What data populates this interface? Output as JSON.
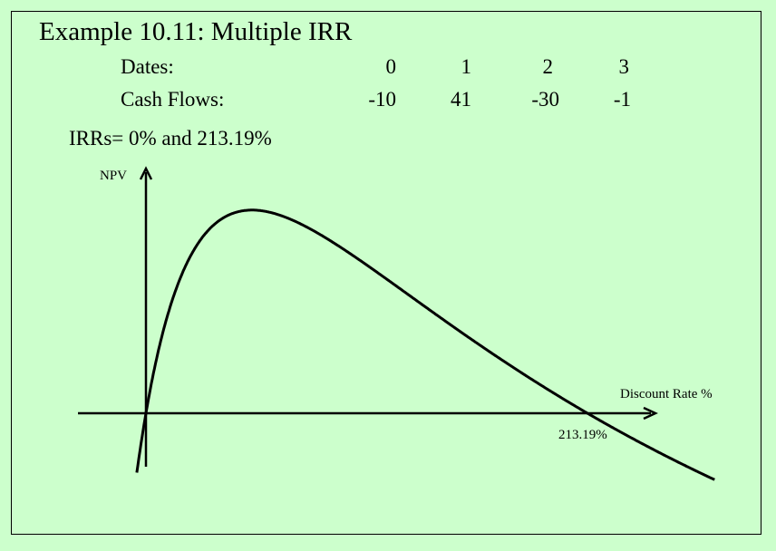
{
  "title": "Example 10.11: Multiple IRR",
  "table": {
    "dates_label": "Dates:",
    "cash_flows_label": "Cash Flows:",
    "dates": [
      "0",
      "1",
      "2",
      "3"
    ],
    "cash_flows": [
      "-10",
      "41",
      "-30",
      "-1"
    ]
  },
  "irr_text": "IRRs= 0% and 213.19%",
  "chart_data": {
    "type": "line",
    "ylabel": "NPV",
    "xlabel": "Discount Rate %",
    "annotations": [
      "213.19%"
    ],
    "cash_flows": [
      -10,
      41,
      -30,
      -1
    ],
    "roots_percent": [
      0,
      213.19
    ],
    "xlim": [
      -10,
      300
    ],
    "ylim": [
      -3.4,
      5.2
    ],
    "grid": false,
    "legend": "none",
    "line_color": "#000000"
  }
}
